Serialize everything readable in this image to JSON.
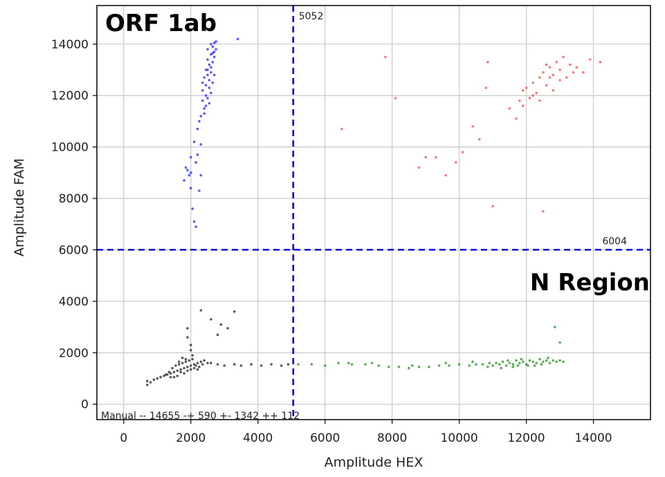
{
  "chart_data": {
    "type": "scatter",
    "xlabel": "Amplitude HEX",
    "ylabel": "Amplitude FAM",
    "xlim": [
      -800,
      15700
    ],
    "ylim": [
      -600,
      15500
    ],
    "xticks": [
      0,
      2000,
      4000,
      6000,
      8000,
      10000,
      12000,
      14000
    ],
    "yticks": [
      0,
      2000,
      4000,
      6000,
      8000,
      10000,
      12000,
      14000
    ],
    "grid": true,
    "annotations": {
      "top_left": "ORF 1ab",
      "bottom_right": "N Region",
      "footer": "Manual -- 14655 -+ 590 +- 1342 ++ 112"
    },
    "thresholds": {
      "vertical": {
        "value": 5052,
        "label": "5052",
        "color": "#0000dd"
      },
      "horizontal": {
        "value": 6004,
        "label": "6004",
        "color": "#0000dd"
      }
    },
    "series": [
      {
        "color": "#0000ff",
        "points": [
          [
            1850,
            9200
          ],
          [
            1900,
            9100
          ],
          [
            1950,
            8900
          ],
          [
            2000,
            8400
          ],
          [
            2050,
            7600
          ],
          [
            2100,
            7100
          ],
          [
            2150,
            6900
          ],
          [
            1800,
            8700
          ],
          [
            2000,
            9600
          ],
          [
            2200,
            9700
          ],
          [
            2100,
            10200
          ],
          [
            2200,
            10700
          ],
          [
            2250,
            11000
          ],
          [
            2300,
            11200
          ],
          [
            2350,
            11800
          ],
          [
            2400,
            11500
          ],
          [
            2350,
            12200
          ],
          [
            2450,
            12400
          ],
          [
            2500,
            12800
          ],
          [
            2550,
            13200
          ],
          [
            2600,
            13600
          ],
          [
            2650,
            13900
          ],
          [
            2700,
            14050
          ],
          [
            2500,
            13000
          ],
          [
            2450,
            12000
          ],
          [
            2550,
            12600
          ],
          [
            2600,
            12900
          ],
          [
            2650,
            13300
          ],
          [
            2700,
            13700
          ],
          [
            2750,
            14100
          ],
          [
            2500,
            11900
          ],
          [
            2400,
            12700
          ],
          [
            2600,
            13100
          ],
          [
            2550,
            12300
          ],
          [
            2650,
            12500
          ],
          [
            2700,
            13500
          ],
          [
            2450,
            13000
          ],
          [
            2350,
            12500
          ],
          [
            2500,
            13400
          ],
          [
            2750,
            13800
          ],
          [
            2600,
            14000
          ],
          [
            2700,
            12800
          ],
          [
            2550,
            11700
          ],
          [
            2450,
            11600
          ],
          [
            2600,
            12100
          ],
          [
            2300,
            10100
          ],
          [
            2150,
            9400
          ],
          [
            2000,
            9000
          ],
          [
            2300,
            8900
          ],
          [
            2250,
            8300
          ],
          [
            3400,
            14200
          ],
          [
            2500,
            13800
          ],
          [
            2650,
            13650
          ],
          [
            2400,
            11300
          ]
        ]
      },
      {
        "color": "#ff3030",
        "points": [
          [
            7800,
            13500
          ],
          [
            8100,
            11900
          ],
          [
            6500,
            10700
          ],
          [
            8800,
            9200
          ],
          [
            9000,
            9600
          ],
          [
            9300,
            9600
          ],
          [
            9600,
            8900
          ],
          [
            9900,
            9400
          ],
          [
            10100,
            9800
          ],
          [
            10400,
            10800
          ],
          [
            10600,
            10300
          ],
          [
            10800,
            12300
          ],
          [
            10850,
            13300
          ],
          [
            11000,
            7700
          ],
          [
            11500,
            11500
          ],
          [
            11700,
            11100
          ],
          [
            11800,
            11800
          ],
          [
            11900,
            12200
          ],
          [
            12000,
            12300
          ],
          [
            12100,
            11900
          ],
          [
            12200,
            12500
          ],
          [
            12300,
            12100
          ],
          [
            12400,
            12700
          ],
          [
            12500,
            12900
          ],
          [
            12600,
            12400
          ],
          [
            12700,
            13100
          ],
          [
            12800,
            12800
          ],
          [
            12900,
            13300
          ],
          [
            13000,
            13000
          ],
          [
            13100,
            13500
          ],
          [
            13200,
            12700
          ],
          [
            13300,
            13200
          ],
          [
            13400,
            12900
          ],
          [
            13500,
            13100
          ],
          [
            13700,
            12900
          ],
          [
            13900,
            13400
          ],
          [
            14200,
            13300
          ],
          [
            12500,
            7500
          ],
          [
            12200,
            12000
          ],
          [
            12600,
            13200
          ],
          [
            12800,
            12200
          ],
          [
            13000,
            12600
          ],
          [
            12400,
            11800
          ],
          [
            11900,
            11600
          ],
          [
            12700,
            12700
          ]
        ]
      },
      {
        "color": "#000000",
        "points": [
          [
            700,
            900
          ],
          [
            700,
            750
          ],
          [
            800,
            850
          ],
          [
            900,
            950
          ],
          [
            1000,
            1000
          ],
          [
            1100,
            1050
          ],
          [
            1200,
            1100
          ],
          [
            1300,
            1150
          ],
          [
            1400,
            1200
          ],
          [
            1500,
            1250
          ],
          [
            1600,
            1300
          ],
          [
            1700,
            1350
          ],
          [
            1800,
            1400
          ],
          [
            1900,
            1450
          ],
          [
            2000,
            1500
          ],
          [
            2100,
            1550
          ],
          [
            2200,
            1600
          ],
          [
            2300,
            1650
          ],
          [
            2400,
            1700
          ],
          [
            2500,
            1600
          ],
          [
            1450,
            1400
          ],
          [
            1550,
            1500
          ],
          [
            1650,
            1550
          ],
          [
            1750,
            1600
          ],
          [
            1850,
            1650
          ],
          [
            1950,
            1700
          ],
          [
            2050,
            1750
          ],
          [
            2150,
            1500
          ],
          [
            2250,
            1450
          ],
          [
            2350,
            1550
          ],
          [
            1350,
            1250
          ],
          [
            1250,
            1150
          ],
          [
            1600,
            1100
          ],
          [
            1700,
            1250
          ],
          [
            1800,
            1200
          ],
          [
            1900,
            1300
          ],
          [
            2000,
            1350
          ],
          [
            2100,
            1400
          ],
          [
            2200,
            1350
          ],
          [
            1500,
            1050
          ],
          [
            1400,
            1050
          ],
          [
            1650,
            1650
          ],
          [
            1750,
            1800
          ],
          [
            1850,
            1750
          ],
          [
            2050,
            1900
          ],
          [
            2000,
            2100
          ],
          [
            2000,
            2300
          ],
          [
            1900,
            2600
          ],
          [
            1900,
            2950
          ],
          [
            2600,
            3300
          ],
          [
            2300,
            3650
          ],
          [
            3300,
            3600
          ],
          [
            2800,
            2700
          ],
          [
            3100,
            2950
          ],
          [
            2900,
            3100
          ],
          [
            2600,
            1600
          ],
          [
            2800,
            1550
          ],
          [
            3000,
            1500
          ],
          [
            3300,
            1550
          ],
          [
            3500,
            1500
          ],
          [
            3800,
            1550
          ],
          [
            4100,
            1500
          ],
          [
            4400,
            1550
          ],
          [
            4700,
            1500
          ],
          [
            4900,
            1550
          ]
        ]
      },
      {
        "color": "#008000",
        "points": [
          [
            5200,
            1550
          ],
          [
            5600,
            1550
          ],
          [
            6000,
            1500
          ],
          [
            6400,
            1600
          ],
          [
            6800,
            1550
          ],
          [
            7200,
            1550
          ],
          [
            7600,
            1500
          ],
          [
            7900,
            1450
          ],
          [
            8200,
            1450
          ],
          [
            8500,
            1400
          ],
          [
            8800,
            1450
          ],
          [
            9100,
            1450
          ],
          [
            9400,
            1500
          ],
          [
            9700,
            1500
          ],
          [
            10000,
            1550
          ],
          [
            10300,
            1500
          ],
          [
            10500,
            1550
          ],
          [
            10700,
            1550
          ],
          [
            10900,
            1600
          ],
          [
            11000,
            1500
          ],
          [
            11100,
            1600
          ],
          [
            11200,
            1550
          ],
          [
            11300,
            1650
          ],
          [
            11400,
            1500
          ],
          [
            11500,
            1600
          ],
          [
            11600,
            1550
          ],
          [
            11700,
            1700
          ],
          [
            11800,
            1600
          ],
          [
            11900,
            1650
          ],
          [
            12000,
            1550
          ],
          [
            12100,
            1700
          ],
          [
            12200,
            1650
          ],
          [
            12300,
            1600
          ],
          [
            12400,
            1750
          ],
          [
            12500,
            1650
          ],
          [
            12600,
            1700
          ],
          [
            12700,
            1600
          ],
          [
            12800,
            1700
          ],
          [
            12900,
            1650
          ],
          [
            13000,
            1700
          ],
          [
            13100,
            1650
          ],
          [
            11250,
            1400
          ],
          [
            11600,
            1450
          ],
          [
            12050,
            1500
          ],
          [
            12450,
            1550
          ],
          [
            11850,
            1750
          ],
          [
            12650,
            1800
          ],
          [
            11450,
            1700
          ],
          [
            10850,
            1450
          ],
          [
            12850,
            3000
          ],
          [
            13000,
            2400
          ],
          [
            9600,
            1600
          ],
          [
            7400,
            1600
          ],
          [
            6700,
            1600
          ],
          [
            8600,
            1500
          ],
          [
            11750,
            1500
          ],
          [
            12250,
            1500
          ],
          [
            10400,
            1650
          ]
        ]
      }
    ]
  }
}
